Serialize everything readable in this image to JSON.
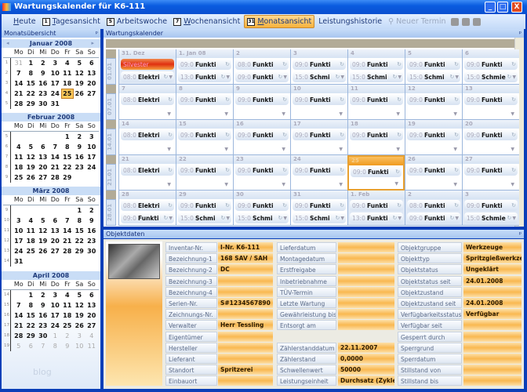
{
  "window": {
    "title": "Wartungskalender für K6-111",
    "min": "_",
    "max": "□",
    "close": "X"
  },
  "toolbar": [
    {
      "label": "Heute",
      "icon": "",
      "ul": "H",
      "rest": "eute"
    },
    {
      "label": "Tagesansicht",
      "icon": "1",
      "ul": "T",
      "rest": "agesansicht"
    },
    {
      "label": "Arbeitswoche",
      "icon": "5",
      "ul": "",
      "rest": "Arbeitswoche"
    },
    {
      "label": "Wochenansicht",
      "icon": "7",
      "ul": "W",
      "rest": "ochenansicht"
    },
    {
      "label": "Monatsansicht",
      "icon": "31",
      "ul": "M",
      "rest": "onatsansicht",
      "active": true
    },
    {
      "label": "Leistungshistorie",
      "icon": "",
      "ul": "",
      "rest": "Leistungshistorie"
    },
    {
      "label": "Neuer Termin",
      "icon": "",
      "ul": "",
      "rest": "Neuer Termin",
      "disabled": true
    }
  ],
  "left_panel": {
    "title": "Monatsübersicht",
    "pin": "ᵖ",
    "watermark": "blog",
    "weekdays": [
      "Mo",
      "Di",
      "Mi",
      "Do",
      "Fr",
      "Sa",
      "So"
    ],
    "selected": "25 Januar 2008",
    "months": [
      {
        "name": "Januar 2008",
        "weeks": [
          [
            "1",
            [
              "31o",
              "1",
              "2",
              "3",
              "4",
              "5",
              "6"
            ]
          ],
          [
            "2",
            [
              "7",
              "8",
              "9",
              "10",
              "11",
              "12",
              "13"
            ]
          ],
          [
            "3",
            [
              "14",
              "15",
              "16",
              "17",
              "18",
              "19",
              "20"
            ]
          ],
          [
            "4",
            [
              "21",
              "22",
              "23",
              "24",
              "25s",
              "26",
              "27"
            ]
          ],
          [
            "5",
            [
              "28",
              "29",
              "30",
              "31",
              "",
              "",
              ""
            ]
          ]
        ]
      },
      {
        "name": "Februar 2008",
        "weeks": [
          [
            "5",
            [
              "",
              "",
              "",
              "",
              "1",
              "2",
              "3"
            ]
          ],
          [
            "6",
            [
              "4",
              "5",
              "6",
              "7",
              "8",
              "9",
              "10"
            ]
          ],
          [
            "7",
            [
              "11",
              "12",
              "13",
              "14",
              "15",
              "16",
              "17"
            ]
          ],
          [
            "8",
            [
              "18",
              "19",
              "20",
              "21",
              "22",
              "23",
              "24"
            ]
          ],
          [
            "9",
            [
              "25",
              "26",
              "27",
              "28",
              "29",
              "",
              ""
            ]
          ]
        ]
      },
      {
        "name": "März 2008",
        "weeks": [
          [
            "9",
            [
              "",
              "",
              "",
              "",
              "",
              "1",
              "2"
            ]
          ],
          [
            "10",
            [
              "3",
              "4",
              "5",
              "6",
              "7",
              "8",
              "9"
            ]
          ],
          [
            "11",
            [
              "10",
              "11",
              "12",
              "13",
              "14",
              "15",
              "16"
            ]
          ],
          [
            "12",
            [
              "17",
              "18",
              "19",
              "20",
              "21",
              "22",
              "23"
            ]
          ],
          [
            "13",
            [
              "24",
              "25",
              "26",
              "27",
              "28",
              "29",
              "30"
            ]
          ],
          [
            "14",
            [
              "31",
              "",
              "",
              "",
              "",
              "",
              ""
            ]
          ]
        ]
      },
      {
        "name": "April 2008",
        "weeks": [
          [
            "14",
            [
              "",
              "1",
              "2",
              "3",
              "4",
              "5",
              "6"
            ]
          ],
          [
            "15",
            [
              "7",
              "8",
              "9",
              "10",
              "11",
              "12",
              "13"
            ]
          ],
          [
            "16",
            [
              "14",
              "15",
              "16",
              "17",
              "18",
              "19",
              "20"
            ]
          ],
          [
            "17",
            [
              "21",
              "22",
              "23",
              "24",
              "25",
              "26",
              "27"
            ]
          ],
          [
            "18",
            [
              "28",
              "29",
              "30",
              "1o",
              "2o",
              "3o",
              "4o"
            ]
          ],
          [
            "19",
            [
              "5o",
              "6o",
              "7o",
              "8o",
              "9o",
              "10o",
              "11o"
            ]
          ]
        ]
      }
    ]
  },
  "calendar": {
    "title": "Wartungskalender",
    "pin": "ᵖ",
    "weeks": [
      {
        "label": "01.01",
        "days": [
          {
            "d": "31. Dez",
            "other": true,
            "appts": [
              [
                "",
                "Silvester",
                "red"
              ],
              [
                "08:0",
                "Elektri"
              ]
            ]
          },
          {
            "d": "1. Jan 08",
            "appts": [
              [
                "09:0",
                "Funkti"
              ],
              [
                "13:0",
                "Funkti"
              ]
            ]
          },
          {
            "d": "2",
            "appts": [
              [
                "08:0",
                "Funkti"
              ],
              [
                "09:0",
                "Funkti"
              ]
            ]
          },
          {
            "d": "3",
            "appts": [
              [
                "09:0",
                "Funkti"
              ],
              [
                "15:0",
                "Schmi"
              ]
            ]
          },
          {
            "d": "4",
            "appts": [
              [
                "09:0",
                "Funkti"
              ],
              [
                "15:0",
                "Schmi"
              ]
            ]
          },
          {
            "d": "5",
            "appts": [
              [
                "09:0",
                "Funkti"
              ],
              [
                "15:0",
                "Schmi"
              ]
            ]
          },
          {
            "d": "6",
            "appts": [
              [
                "09:0",
                "Funkti"
              ],
              [
                "15:0",
                "Schmie"
              ]
            ]
          }
        ]
      },
      {
        "label": "07.01",
        "days": [
          {
            "d": "7",
            "appts": [
              [
                "08:0",
                "Elektri"
              ]
            ]
          },
          {
            "d": "8",
            "appts": [
              [
                "09:0",
                "Funkti"
              ]
            ]
          },
          {
            "d": "9",
            "appts": [
              [
                "09:0",
                "Funkti"
              ]
            ]
          },
          {
            "d": "10",
            "appts": [
              [
                "09:0",
                "Funkti"
              ]
            ]
          },
          {
            "d": "11",
            "appts": [
              [
                "09:0",
                "Funkti"
              ]
            ]
          },
          {
            "d": "12",
            "appts": [
              [
                "09:0",
                "Funkti"
              ]
            ]
          },
          {
            "d": "13",
            "appts": [
              [
                "09:0",
                "Funkti"
              ]
            ]
          }
        ]
      },
      {
        "label": "14.01",
        "days": [
          {
            "d": "14",
            "appts": [
              [
                "08:0",
                "Elektri"
              ]
            ]
          },
          {
            "d": "15",
            "appts": [
              [
                "09:0",
                "Funkti"
              ]
            ]
          },
          {
            "d": "16",
            "appts": [
              [
                "09:0",
                "Funkti"
              ]
            ]
          },
          {
            "d": "17",
            "appts": [
              [
                "09:0",
                "Funkti"
              ]
            ]
          },
          {
            "d": "18",
            "appts": [
              [
                "09:0",
                "Funkti"
              ]
            ]
          },
          {
            "d": "19",
            "appts": [
              [
                "09:0",
                "Funkti"
              ]
            ]
          },
          {
            "d": "20",
            "appts": [
              [
                "09:0",
                "Funkti"
              ]
            ]
          }
        ]
      },
      {
        "label": "21.01",
        "days": [
          {
            "d": "21",
            "appts": [
              [
                "08:0",
                "Elektri"
              ]
            ]
          },
          {
            "d": "22",
            "appts": [
              [
                "09:0",
                "Funkti"
              ]
            ]
          },
          {
            "d": "23",
            "appts": [
              [
                "09:0",
                "Funkti"
              ]
            ]
          },
          {
            "d": "24",
            "appts": [
              [
                "09:0",
                "Funkti"
              ]
            ]
          },
          {
            "d": "25",
            "today": true,
            "appts": [
              [
                "09:0",
                "Funkti"
              ]
            ]
          },
          {
            "d": "26",
            "appts": [
              [
                "09:0",
                "Funkti"
              ]
            ]
          },
          {
            "d": "27",
            "appts": [
              [
                "09:0",
                "Funkti"
              ]
            ]
          }
        ]
      },
      {
        "label": "28.01",
        "days": [
          {
            "d": "28",
            "appts": [
              [
                "08:0",
                "Elektri"
              ],
              [
                "09:0",
                "Funkti"
              ]
            ]
          },
          {
            "d": "29",
            "appts": [
              [
                "09:0",
                "Funkti"
              ],
              [
                "15:0",
                "Schmi"
              ]
            ]
          },
          {
            "d": "30",
            "appts": [
              [
                "09:0",
                "Funkti"
              ],
              [
                "15:0",
                "Schmi"
              ]
            ]
          },
          {
            "d": "31",
            "appts": [
              [
                "09:0",
                "Funkti"
              ],
              [
                "15:0",
                "Schmi"
              ]
            ]
          },
          {
            "d": "1. Feb",
            "other": true,
            "appts": [
              [
                "09:0",
                "Funkti"
              ],
              [
                "13:0",
                "Funkti"
              ]
            ]
          },
          {
            "d": "2",
            "other": true,
            "appts": [
              [
                "08:0",
                "Funkti"
              ],
              [
                "09:0",
                "Funkti"
              ]
            ]
          },
          {
            "d": "3",
            "other": true,
            "appts": [
              [
                "09:0",
                "Funkti"
              ],
              [
                "15:0",
                "Schmie"
              ]
            ]
          }
        ]
      }
    ]
  },
  "objektdaten": {
    "title": "Objektdaten",
    "pin": "ᵖ",
    "col1": [
      [
        "Inventar-Nr.",
        "I-Nr. K6-111"
      ],
      [
        "Bezeichnung-1",
        "168 SAV / SAH"
      ],
      [
        "Bezeichnung-2",
        "DC"
      ],
      [
        "Bezeichnung-3",
        ""
      ],
      [
        "Bezeichnung-4",
        ""
      ],
      [
        "Serien-Nr.",
        "S#1234567890"
      ],
      [
        "Zeichnungs-Nr.",
        ""
      ],
      [
        "Verwalter",
        "Herr Tessling"
      ],
      [
        "Eigentümer",
        ""
      ],
      [
        "Hersteller",
        ""
      ],
      [
        "Lieferant",
        ""
      ],
      [
        "Standort",
        "Spritzerei"
      ],
      [
        "Einbauort",
        ""
      ]
    ],
    "col2": [
      [
        "Lieferdatum",
        ""
      ],
      [
        "Montagedatum",
        ""
      ],
      [
        "Erstfreigabe",
        ""
      ],
      [
        "Inbetriebnahme",
        ""
      ],
      [
        "TÜV-Termin",
        ""
      ],
      [
        "Letzte Wartung",
        ""
      ],
      [
        "Gewährleistung bis",
        ""
      ],
      [
        "Entsorgt am",
        ""
      ],
      null,
      [
        "Zählerstanddatum",
        "22.11.2007"
      ],
      [
        "Zählerstand",
        "0,0000"
      ],
      [
        "Schwellenwert",
        "50000"
      ],
      [
        "Leistungseinheit",
        "Durchsatz (Zyklen/"
      ]
    ],
    "col3": [
      [
        "Objektgruppe",
        "Werkzeuge"
      ],
      [
        "Objekttyp",
        "Spritzgießwerkzeug"
      ],
      [
        "Objektstatus",
        "Ungeklärt"
      ],
      [
        "Objektstatus seit",
        "24.01.2008"
      ],
      [
        "Objektzustand",
        ""
      ],
      [
        "Objektzustand seit",
        "24.01.2008"
      ],
      [
        "Verfügbarkeitsstatus",
        "Verfügbar"
      ],
      [
        "Verfügbar seit",
        ""
      ],
      [
        "Gesperrt durch",
        ""
      ],
      [
        "Sperrgrund",
        ""
      ],
      [
        "Sperrdatum",
        ""
      ],
      [
        "Stillstand von",
        ""
      ],
      [
        "Stillstand bis",
        ""
      ]
    ]
  }
}
